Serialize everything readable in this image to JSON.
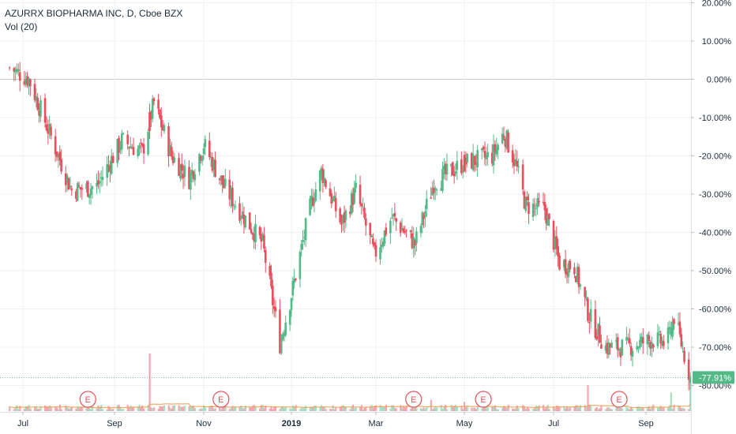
{
  "header": {
    "title": "AZURRX BIOPHARMA INC, D, Cboe BZX",
    "volume_label": "Vol (20)"
  },
  "colors": {
    "up": "#53b987",
    "down": "#eb4d5c",
    "up_volume": "#a8dcc3",
    "down_volume": "#f5a6ae",
    "ma_line": "#f29d4b",
    "grid": "#eef0f3",
    "zero_line": "#c5c8cc",
    "last_price_line": "#53b987",
    "last_price_badge": "#53b987",
    "earnings_marker": "#e0555b",
    "axis_text": "#1e2a3a",
    "price_scale_bg": "#ffffff"
  },
  "chart_data": {
    "type": "candlestick",
    "title": "AZURRX BIOPHARMA INC, D, Cboe BZX",
    "y_unit": "percent change",
    "ylim": [
      -85,
      21
    ],
    "y_ticks": [
      "20.00%",
      "10.00%",
      "0.00%",
      "-10.00%",
      "-20.00%",
      "-30.00%",
      "-40.00%",
      "-50.00%",
      "-60.00%",
      "-70.00%",
      "-80.00%"
    ],
    "y_tick_values": [
      20,
      10,
      0,
      -10,
      -20,
      -30,
      -40,
      -50,
      -60,
      -70,
      -80
    ],
    "x_ticks": [
      "Jul",
      "Sep",
      "Nov",
      "2019",
      "Mar",
      "May",
      "Jul",
      "Sep"
    ],
    "grid": true,
    "last_value": -77.91,
    "last_value_label": "-77.91%",
    "earnings_label": "E",
    "earnings_months": [
      "Aug 2018",
      "Nov 2018",
      "Mar 2019",
      "May 2019",
      "Aug 2019"
    ],
    "volume_indicator": "Vol (20)",
    "trend_keypoints": [
      {
        "date": "2018-06-22",
        "value": 3
      },
      {
        "date": "2018-07-05",
        "value": 0
      },
      {
        "date": "2018-07-20",
        "value": -15
      },
      {
        "date": "2018-08-03",
        "value": -29
      },
      {
        "date": "2018-08-20",
        "value": -28
      },
      {
        "date": "2018-09-06",
        "value": -16
      },
      {
        "date": "2018-09-20",
        "value": -19
      },
      {
        "date": "2018-09-28",
        "value": -6
      },
      {
        "date": "2018-10-10",
        "value": -20
      },
      {
        "date": "2018-10-22",
        "value": -26
      },
      {
        "date": "2018-11-01",
        "value": -17
      },
      {
        "date": "2018-11-15",
        "value": -28
      },
      {
        "date": "2018-12-01",
        "value": -37
      },
      {
        "date": "2018-12-12",
        "value": -43
      },
      {
        "date": "2018-12-24",
        "value": -69
      },
      {
        "date": "2018-12-31",
        "value": -58
      },
      {
        "date": "2019-01-15",
        "value": -32
      },
      {
        "date": "2019-01-22",
        "value": -24
      },
      {
        "date": "2019-02-05",
        "value": -38
      },
      {
        "date": "2019-02-15",
        "value": -29
      },
      {
        "date": "2019-02-28",
        "value": -46
      },
      {
        "date": "2019-03-12",
        "value": -36
      },
      {
        "date": "2019-03-28",
        "value": -43
      },
      {
        "date": "2019-04-10",
        "value": -27
      },
      {
        "date": "2019-04-30",
        "value": -22
      },
      {
        "date": "2019-05-20",
        "value": -20
      },
      {
        "date": "2019-05-28",
        "value": -14
      },
      {
        "date": "2019-06-05",
        "value": -22
      },
      {
        "date": "2019-06-12",
        "value": -33
      },
      {
        "date": "2019-06-25",
        "value": -34
      },
      {
        "date": "2019-07-05",
        "value": -48
      },
      {
        "date": "2019-07-15",
        "value": -49
      },
      {
        "date": "2019-07-25",
        "value": -62
      },
      {
        "date": "2019-08-05",
        "value": -70
      },
      {
        "date": "2019-08-20",
        "value": -70
      },
      {
        "date": "2019-09-05",
        "value": -68
      },
      {
        "date": "2019-09-15",
        "value": -69
      },
      {
        "date": "2019-09-20",
        "value": -62
      },
      {
        "date": "2019-09-27",
        "value": -72
      },
      {
        "date": "2019-10-01",
        "value": -77.91
      }
    ],
    "volume_spikes": [
      {
        "date": "2018-09-25",
        "relative": 0.62,
        "direction": "down"
      },
      {
        "date": "2019-04-08",
        "relative": 0.12,
        "direction": "down"
      },
      {
        "date": "2019-05-01",
        "relative": 0.1,
        "direction": "down"
      },
      {
        "date": "2019-07-24",
        "relative": 0.28,
        "direction": "down"
      },
      {
        "date": "2019-09-18",
        "relative": 0.2,
        "direction": "up"
      },
      {
        "date": "2019-10-01",
        "relative": 0.42,
        "direction": "up"
      }
    ]
  }
}
